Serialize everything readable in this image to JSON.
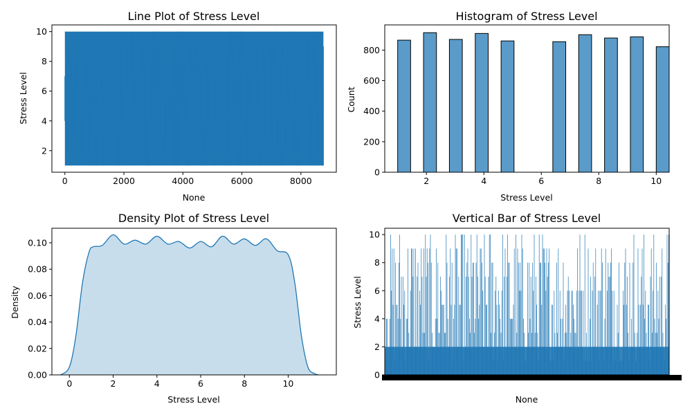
{
  "chart_data": [
    {
      "id": "line",
      "type": "line",
      "title": "Line Plot of Stress Level",
      "xlabel": "None",
      "ylabel": "Stress Level",
      "xlim": [
        -440,
        9200
      ],
      "ylim": [
        0.55,
        10.45
      ],
      "xticks": [
        0,
        2000,
        4000,
        6000,
        8000
      ],
      "yticks": [
        2,
        4,
        6,
        8,
        10
      ],
      "color": "#1f77b4",
      "series": [
        {
          "x_range": [
            0,
            8763
          ],
          "y_range": [
            1,
            10
          ],
          "values_note": "8764 observations oscillating between 1 and 10; dense band"
        }
      ],
      "grid": false
    },
    {
      "id": "hist",
      "type": "bar",
      "title": "Histogram of Stress Level",
      "xlabel": "Stress Level",
      "ylabel": "Count",
      "xlim": [
        0.55,
        10.45
      ],
      "ylim": [
        0,
        965
      ],
      "xticks": [
        2,
        4,
        6,
        8,
        10
      ],
      "yticks": [
        0,
        200,
        400,
        600,
        800
      ],
      "color": "#5a9bc9",
      "edgecolor": "#000000",
      "bins": [
        {
          "x0": 1.0,
          "x1": 1.45,
          "count": 865
        },
        {
          "x0": 1.9,
          "x1": 2.35,
          "count": 914
        },
        {
          "x0": 2.8,
          "x1": 3.25,
          "count": 870
        },
        {
          "x0": 3.7,
          "x1": 4.15,
          "count": 909
        },
        {
          "x0": 4.6,
          "x1": 5.05,
          "count": 860
        },
        {
          "x0": 6.4,
          "x1": 6.85,
          "count": 855
        },
        {
          "x0": 7.3,
          "x1": 7.75,
          "count": 901
        },
        {
          "x0": 8.2,
          "x1": 8.65,
          "count": 879
        },
        {
          "x0": 9.1,
          "x1": 9.55,
          "count": 887
        },
        {
          "x0": 10.0,
          "x1": 10.45,
          "count": 822
        }
      ],
      "grid": false
    },
    {
      "id": "density",
      "type": "area",
      "title": "Density Plot of Stress Level",
      "xlabel": "Stress Level",
      "ylabel": "Density",
      "xlim": [
        -0.8,
        12.2
      ],
      "ylim": [
        0,
        0.111
      ],
      "xticks": [
        0,
        2,
        4,
        6,
        8,
        10
      ],
      "yticks": [
        0.0,
        0.02,
        0.04,
        0.06,
        0.08,
        0.1
      ],
      "ytick_labels": [
        "0.00",
        "0.02",
        "0.04",
        "0.06",
        "0.08",
        "0.10"
      ],
      "color": "#1f77b4",
      "x": [
        -0.4,
        0,
        0.3,
        0.6,
        0.9,
        1.1,
        1.5,
        2,
        2.5,
        3,
        3.5,
        4,
        4.5,
        5,
        5.5,
        6,
        6.5,
        7,
        7.5,
        8,
        8.5,
        9,
        9.5,
        10,
        10.3,
        10.6,
        10.9,
        11.2,
        11.4
      ],
      "y": [
        0.0,
        0.006,
        0.03,
        0.07,
        0.093,
        0.097,
        0.098,
        0.106,
        0.099,
        0.102,
        0.099,
        0.105,
        0.099,
        0.101,
        0.096,
        0.101,
        0.097,
        0.105,
        0.099,
        0.103,
        0.098,
        0.103,
        0.094,
        0.091,
        0.07,
        0.03,
        0.006,
        0.001,
        0.0
      ],
      "grid": false
    },
    {
      "id": "vbar",
      "type": "bar",
      "title": "Vertical Bar of Stress Level",
      "xlabel": "None",
      "ylabel": "Stress Level",
      "ylim": [
        0,
        10.45
      ],
      "yticks": [
        0,
        2,
        4,
        6,
        8,
        10
      ],
      "color": "#1f77b4",
      "n_bars": 8764,
      "values_note": "one bar per observation, heights between 1 and 10; x tick labels overlap into a solid black band",
      "grid": false
    }
  ]
}
